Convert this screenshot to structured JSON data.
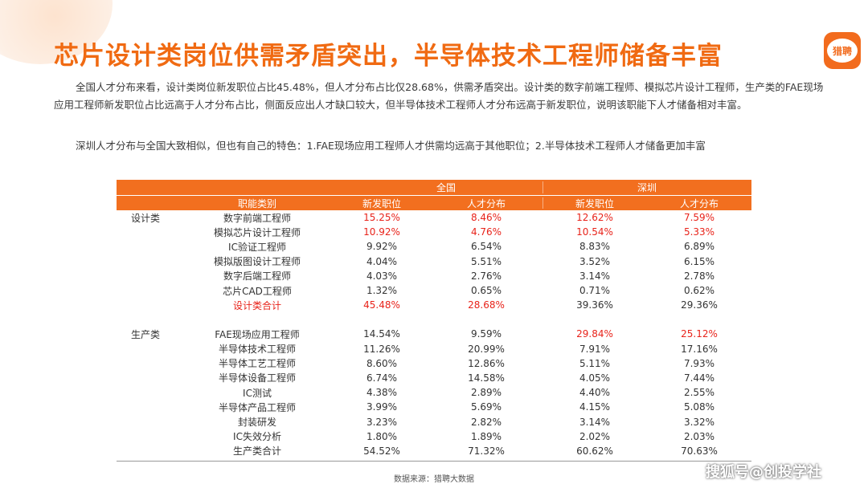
{
  "title": "芯片设计类岗位供需矛盾突出，半导体技术工程师储备丰富",
  "logo_text": "猎聘",
  "paragraph1": "全国人才分布来看，设计类岗位新发职位占比45.48%，但人才分布占比仅28.68%，供需矛盾突出。设计类的数字前端工程师、模拟芯片设计工程师，生产类的FAE现场应用工程师新发职位占比远高于人才分布占比，侧面反应出人才缺口较大，但半导体技术工程师人才分布远高于新发职位，说明该职能下人才储备相对丰富。",
  "paragraph2": "深圳人才分布与全国大致相似，但也有自己的特色：1.FAE现场应用工程师人才供需均远高于其他职位；2.半导体技术工程师人才储备更加丰富",
  "table": {
    "region_nation": "全国",
    "region_shenzhen": "深圳",
    "col_function": "职能类别",
    "col_new_jobs": "新发职位",
    "col_talent": "人才分布",
    "design_category": "设计类",
    "production_category": "生产类",
    "design_rows": [
      {
        "name": "数字前端工程师",
        "nat_new": "15.25%",
        "nat_talent": "8.46%",
        "sz_new": "12.62%",
        "sz_talent": "7.59%"
      },
      {
        "name": "模拟芯片设计工程师",
        "nat_new": "10.92%",
        "nat_talent": "4.76%",
        "sz_new": "10.54%",
        "sz_talent": "5.33%"
      },
      {
        "name": "IC验证工程师",
        "nat_new": "9.92%",
        "nat_talent": "6.54%",
        "sz_new": "8.83%",
        "sz_talent": "6.89%"
      },
      {
        "name": "模拟版图设计工程师",
        "nat_new": "4.04%",
        "nat_talent": "5.51%",
        "sz_new": "3.52%",
        "sz_talent": "6.15%"
      },
      {
        "name": "数字后端工程师",
        "nat_new": "4.03%",
        "nat_talent": "2.76%",
        "sz_new": "3.14%",
        "sz_talent": "2.78%"
      },
      {
        "name": "芯片CAD工程师",
        "nat_new": "1.32%",
        "nat_talent": "0.65%",
        "sz_new": "0.71%",
        "sz_talent": "0.62%"
      },
      {
        "name": "设计类合计",
        "nat_new": "45.48%",
        "nat_talent": "28.68%",
        "sz_new": "39.36%",
        "sz_talent": "29.36%"
      }
    ],
    "production_rows": [
      {
        "name": "FAE现场应用工程师",
        "nat_new": "14.54%",
        "nat_talent": "9.59%",
        "sz_new": "29.84%",
        "sz_talent": "25.12%"
      },
      {
        "name": "半导体技术工程师",
        "nat_new": "11.26%",
        "nat_talent": "20.99%",
        "sz_new": "7.91%",
        "sz_talent": "17.16%"
      },
      {
        "name": "半导体工艺工程师",
        "nat_new": "8.60%",
        "nat_talent": "12.86%",
        "sz_new": "5.11%",
        "sz_talent": "7.93%"
      },
      {
        "name": "半导体设备工程师",
        "nat_new": "6.74%",
        "nat_talent": "14.58%",
        "sz_new": "4.05%",
        "sz_talent": "7.44%"
      },
      {
        "name": "IC测试",
        "nat_new": "4.38%",
        "nat_talent": "2.89%",
        "sz_new": "4.40%",
        "sz_talent": "2.55%"
      },
      {
        "name": "半导体产品工程师",
        "nat_new": "3.99%",
        "nat_talent": "5.69%",
        "sz_new": "4.15%",
        "sz_talent": "5.08%"
      },
      {
        "name": "封装研发",
        "nat_new": "3.23%",
        "nat_talent": "2.82%",
        "sz_new": "3.14%",
        "sz_talent": "3.32%"
      },
      {
        "name": "IC失效分析",
        "nat_new": "1.80%",
        "nat_talent": "1.89%",
        "sz_new": "2.02%",
        "sz_talent": "2.03%"
      },
      {
        "name": "生产类合计",
        "nat_new": "54.52%",
        "nat_talent": "71.32%",
        "sz_new": "60.62%",
        "sz_talent": "70.63%"
      }
    ]
  },
  "source": "数据来源：猎聘大数据",
  "watermark": "搜狐号@创投学社",
  "colors": {
    "accent": "#f26f1f",
    "title": "#f06a12",
    "highlight": "#e8231a"
  }
}
